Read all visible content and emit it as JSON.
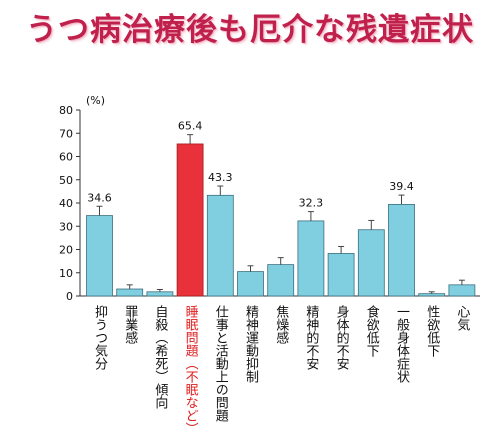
{
  "title": "うつ病治療後も厄介な残遺症状",
  "chart_data": {
    "type": "bar",
    "unit_label": "(%)",
    "ylim": [
      0,
      80
    ],
    "yticks": [
      0,
      10,
      20,
      30,
      40,
      50,
      60,
      70,
      80
    ],
    "categories": [
      "抑うつ気分",
      "罪業感",
      "自殺（希死）傾向",
      "睡眠問題（不眠など）",
      "仕事と活動上の問題",
      "精神運動抑制",
      "焦燥感",
      "精神的不安",
      "身体的不安",
      "食欲低下",
      "一般身体症状",
      "性欲低下",
      "心気"
    ],
    "values": [
      34.6,
      3.0,
      1.8,
      65.4,
      43.3,
      10.5,
      13.5,
      32.3,
      18.3,
      28.5,
      39.4,
      1.0,
      4.8
    ],
    "errors": [
      4.0,
      1.8,
      1.0,
      4.0,
      4.0,
      2.5,
      3.0,
      4.0,
      3.0,
      4.0,
      4.0,
      0.8,
      2.0
    ],
    "data_labels": [
      "34.6",
      "",
      "",
      "65.4",
      "43.3",
      "",
      "",
      "32.3",
      "",
      "",
      "39.4",
      "",
      ""
    ],
    "highlight_index": 3,
    "colors": {
      "bar": "#7fcfe0",
      "bar_stroke": "#3a6f80",
      "highlight": "#e8313a",
      "highlight_label": "#e02020",
      "text": "#111111"
    }
  }
}
